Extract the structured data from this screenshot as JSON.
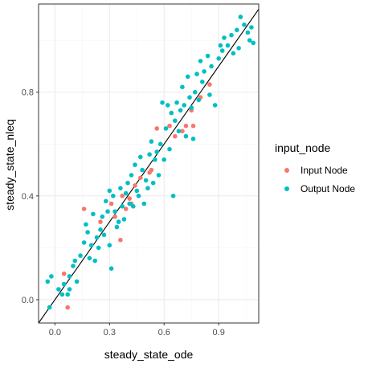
{
  "colors": {
    "input_node": "#F8766D",
    "output_node": "#00BFC4",
    "grid_major": "#ebebeb",
    "grid_minor": "#f5f5f5",
    "panel_border": "#333333",
    "tick_text": "#4d4d4d",
    "reference_line": "#000000"
  },
  "chart_data": {
    "type": "scatter",
    "xlabel": "steady_state_ode",
    "ylabel": "steady_state_nleq",
    "xlim": [
      -0.09,
      1.12
    ],
    "ylim": [
      -0.09,
      1.14
    ],
    "x_ticks": [
      0.0,
      0.3,
      0.6,
      0.9
    ],
    "x_tick_labels": [
      "0.0",
      "0.3",
      "0.6",
      "0.9"
    ],
    "y_ticks": [
      0.0,
      0.4,
      0.8
    ],
    "y_tick_labels": [
      "0.0",
      "0.4",
      "0.8"
    ],
    "grid": true,
    "legend_position": "right",
    "legend_title": "input_node",
    "reference_line": {
      "slope": 1,
      "intercept": 0
    },
    "series": [
      {
        "name": "Input Node",
        "color_key": "input_node",
        "points": [
          [
            0.05,
            0.1
          ],
          [
            0.07,
            -0.03
          ],
          [
            0.16,
            0.35
          ],
          [
            0.25,
            0.3
          ],
          [
            0.31,
            0.37
          ],
          [
            0.33,
            0.32
          ],
          [
            0.36,
            0.23
          ],
          [
            0.37,
            0.4
          ],
          [
            0.39,
            0.35
          ],
          [
            0.41,
            0.39
          ],
          [
            0.42,
            0.37
          ],
          [
            0.44,
            0.44
          ],
          [
            0.47,
            0.47
          ],
          [
            0.52,
            0.49
          ],
          [
            0.53,
            0.5
          ],
          [
            0.56,
            0.66
          ],
          [
            0.63,
            0.67
          ],
          [
            0.66,
            0.63
          ],
          [
            0.7,
            0.65
          ],
          [
            0.72,
            0.67
          ],
          [
            0.75,
            0.73
          ],
          [
            0.76,
            0.67
          ],
          [
            0.8,
            0.78
          ],
          [
            0.85,
            0.83
          ]
        ]
      },
      {
        "name": "Output Node",
        "color_key": "output_node",
        "points": [
          [
            -0.04,
            0.07
          ],
          [
            -0.03,
            -0.03
          ],
          [
            -0.02,
            0.09
          ],
          [
            0.02,
            0.04
          ],
          [
            0.04,
            0.02
          ],
          [
            0.05,
            0.06
          ],
          [
            0.07,
            0.02
          ],
          [
            0.08,
            0.04
          ],
          [
            0.08,
            0.09
          ],
          [
            0.1,
            0.13
          ],
          [
            0.11,
            0.15
          ],
          [
            0.12,
            0.07
          ],
          [
            0.14,
            0.17
          ],
          [
            0.16,
            0.22
          ],
          [
            0.17,
            0.29
          ],
          [
            0.18,
            0.26
          ],
          [
            0.19,
            0.16
          ],
          [
            0.2,
            0.21
          ],
          [
            0.21,
            0.33
          ],
          [
            0.22,
            0.15
          ],
          [
            0.23,
            0.24
          ],
          [
            0.24,
            0.2
          ],
          [
            0.25,
            0.27
          ],
          [
            0.26,
            0.32
          ],
          [
            0.27,
            0.25
          ],
          [
            0.28,
            0.38
          ],
          [
            0.29,
            0.34
          ],
          [
            0.3,
            0.42
          ],
          [
            0.3,
            0.21
          ],
          [
            0.31,
            0.12
          ],
          [
            0.32,
            0.4
          ],
          [
            0.33,
            0.34
          ],
          [
            0.34,
            0.28
          ],
          [
            0.35,
            0.3
          ],
          [
            0.36,
            0.43
          ],
          [
            0.37,
            0.36
          ],
          [
            0.38,
            0.31
          ],
          [
            0.39,
            0.41
          ],
          [
            0.4,
            0.45
          ],
          [
            0.41,
            0.37
          ],
          [
            0.42,
            0.48
          ],
          [
            0.43,
            0.36
          ],
          [
            0.44,
            0.52
          ],
          [
            0.45,
            0.42
          ],
          [
            0.46,
            0.4
          ],
          [
            0.47,
            0.55
          ],
          [
            0.48,
            0.5
          ],
          [
            0.49,
            0.37
          ],
          [
            0.5,
            0.46
          ],
          [
            0.51,
            0.43
          ],
          [
            0.52,
            0.56
          ],
          [
            0.53,
            0.61
          ],
          [
            0.54,
            0.45
          ],
          [
            0.55,
            0.54
          ],
          [
            0.56,
            0.57
          ],
          [
            0.57,
            0.48
          ],
          [
            0.58,
            0.6
          ],
          [
            0.59,
            0.76
          ],
          [
            0.6,
            0.54
          ],
          [
            0.61,
            0.66
          ],
          [
            0.62,
            0.75
          ],
          [
            0.63,
            0.58
          ],
          [
            0.64,
            0.72
          ],
          [
            0.65,
            0.4
          ],
          [
            0.66,
            0.69
          ],
          [
            0.67,
            0.76
          ],
          [
            0.68,
            0.65
          ],
          [
            0.69,
            0.73
          ],
          [
            0.7,
            0.82
          ],
          [
            0.71,
            0.75
          ],
          [
            0.72,
            0.63
          ],
          [
            0.73,
            0.86
          ],
          [
            0.74,
            0.78
          ],
          [
            0.75,
            0.74
          ],
          [
            0.76,
            0.62
          ],
          [
            0.77,
            0.8
          ],
          [
            0.78,
            0.87
          ],
          [
            0.79,
            0.77
          ],
          [
            0.8,
            0.92
          ],
          [
            0.81,
            0.84
          ],
          [
            0.82,
            0.88
          ],
          [
            0.84,
            0.94
          ],
          [
            0.85,
            0.79
          ],
          [
            0.86,
            0.9
          ],
          [
            0.88,
            0.75
          ],
          [
            0.9,
            0.93
          ],
          [
            0.92,
            0.96
          ],
          [
            0.93,
            1.01
          ],
          [
            0.95,
            0.98
          ],
          [
            0.97,
            1.02
          ],
          [
            0.98,
            0.95
          ],
          [
            1.0,
            1.04
          ],
          [
            1.01,
            0.97
          ],
          [
            1.02,
            1.09
          ],
          [
            1.04,
            1.06
          ],
          [
            1.06,
            1.03
          ],
          [
            1.07,
            1.0
          ],
          [
            1.08,
            1.05
          ],
          [
            1.09,
            0.99
          ],
          [
            0.91,
            0.98
          ]
        ]
      }
    ]
  }
}
